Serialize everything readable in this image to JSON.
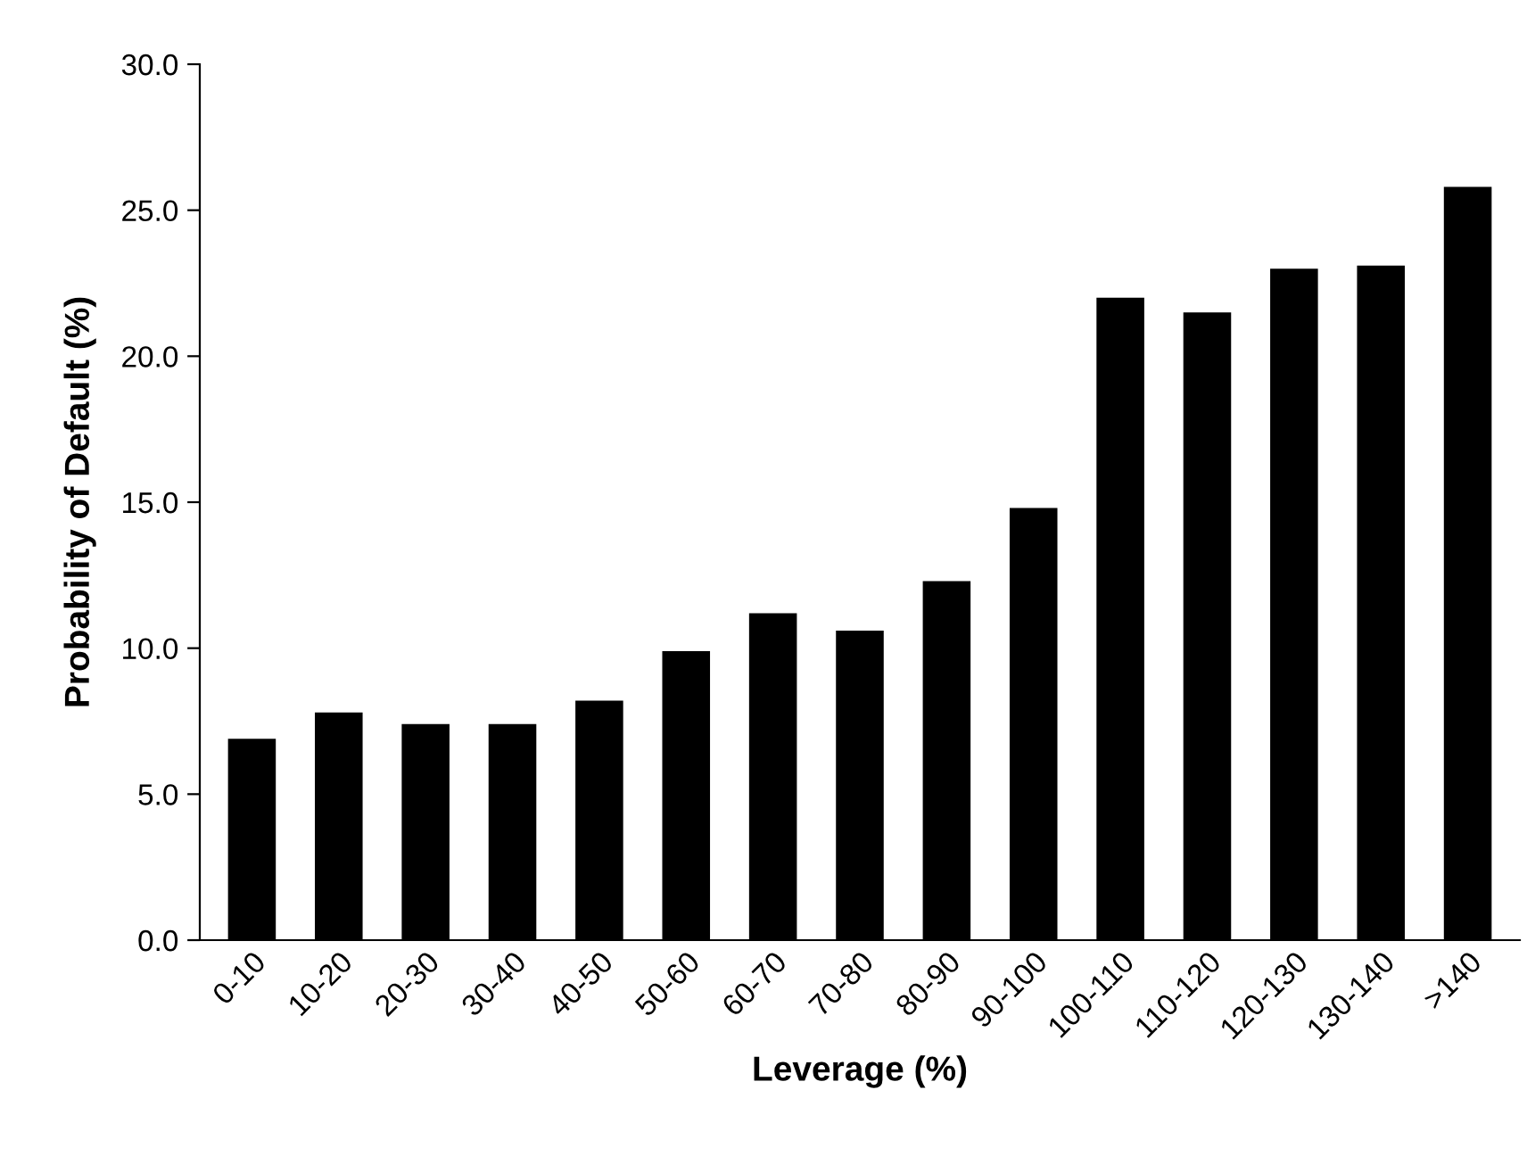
{
  "chart_data": {
    "type": "bar",
    "xlabel": "Leverage (%)",
    "ylabel": "Probability of Default (%)",
    "categories": [
      "0-10",
      "10-20",
      "20-30",
      "30-40",
      "40-50",
      "50-60",
      "60-70",
      "70-80",
      "80-90",
      "90-100",
      "100-110",
      "110-120",
      "120-130",
      "130-140",
      ">140"
    ],
    "values": [
      6.9,
      7.8,
      7.4,
      7.4,
      8.2,
      9.9,
      11.2,
      10.6,
      12.3,
      14.8,
      22.0,
      21.5,
      23.0,
      23.1,
      25.8
    ],
    "color": "#000000",
    "ylim": [
      0,
      30
    ],
    "yticks": [
      {
        "value": 0,
        "label": "0.0"
      },
      {
        "value": 5,
        "label": "5.0"
      },
      {
        "value": 10,
        "label": "10.0"
      },
      {
        "value": 15,
        "label": "15.0"
      },
      {
        "value": 20,
        "label": "20.0"
      },
      {
        "value": 25,
        "label": "25.0"
      },
      {
        "value": 30,
        "label": "30.0"
      }
    ],
    "grid": false,
    "legend": false
  }
}
